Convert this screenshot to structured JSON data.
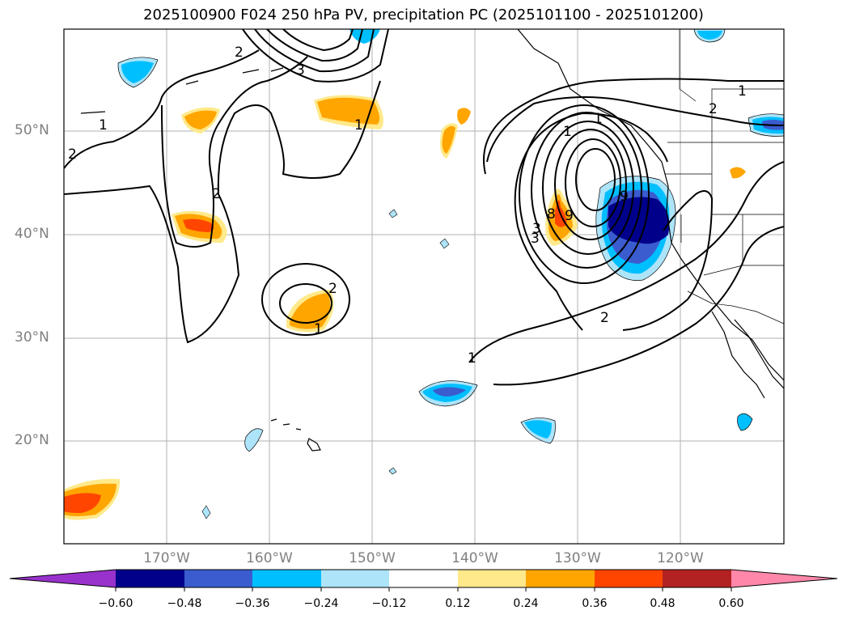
{
  "title": "2025100900 F024 250 hPa PV, precipitation PC (2025101100 - 2025101200)",
  "lat_labels": [
    "50°N",
    "40°N",
    "30°N",
    "20°N"
  ],
  "lon_labels": [
    "170°W",
    "160°W",
    "150°W",
    "140°W",
    "130°W",
    "120°W"
  ],
  "colorbar": {
    "ticks": [
      "−0.60",
      "−0.48",
      "−0.36",
      "−0.24",
      "−0.12",
      "0.12",
      "0.24",
      "0.36",
      "0.48",
      "0.60"
    ],
    "colors": {
      "under": "#9932cc",
      "n060": "#00008b",
      "n048": "#3a5ccf",
      "n036": "#00bfff",
      "n024": "#ade4fa",
      "neutral": "#ffffff",
      "p012": "#ffe98a",
      "p024": "#ffa500",
      "p036": "#ff4500",
      "p048": "#b22222",
      "over": "#ff88aa"
    }
  },
  "contour_labels": [
    "1",
    "2",
    "2",
    "2",
    "1",
    "3",
    "1",
    "2",
    "1",
    "1",
    "2",
    "3",
    "8",
    "9",
    "9",
    "1",
    "1",
    "2",
    "3"
  ]
}
